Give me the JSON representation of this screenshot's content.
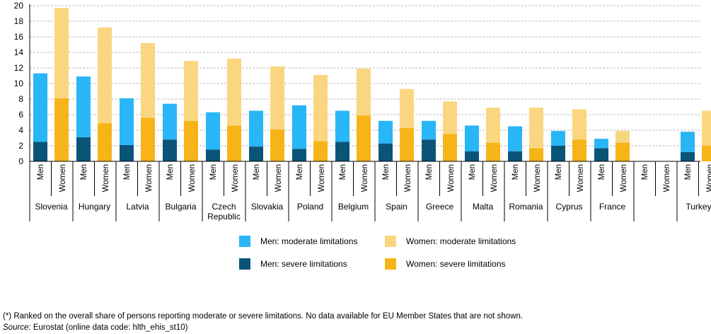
{
  "chart_data": {
    "type": "bar",
    "stacked": true,
    "ylim": [
      0,
      20
    ],
    "yticks": [
      "0",
      "2",
      "4",
      "6",
      "8",
      "10",
      "12",
      "14",
      "16",
      "18",
      "20"
    ],
    "sublabels": [
      "Men",
      "Women"
    ],
    "groups": [
      {
        "name": "Slovenia",
        "men_severe": 2.5,
        "men_moderate": 8.8,
        "women_severe": 8.1,
        "women_moderate": 11.6
      },
      {
        "name": "Hungary",
        "men_severe": 3.1,
        "men_moderate": 7.8,
        "women_severe": 4.9,
        "women_moderate": 12.3
      },
      {
        "name": "Latvia",
        "men_severe": 2.1,
        "men_moderate": 6.0,
        "women_severe": 5.6,
        "women_moderate": 9.6
      },
      {
        "name": "Bulgaria",
        "men_severe": 2.8,
        "men_moderate": 4.6,
        "women_severe": 5.2,
        "women_moderate": 7.7
      },
      {
        "name": "Czech Republic",
        "men_severe": 1.5,
        "men_moderate": 4.8,
        "women_severe": 4.6,
        "women_moderate": 8.6
      },
      {
        "name": "Slovakia",
        "men_severe": 1.9,
        "men_moderate": 4.6,
        "women_severe": 4.1,
        "women_moderate": 8.1
      },
      {
        "name": "Poland",
        "men_severe": 1.6,
        "men_moderate": 5.6,
        "women_severe": 2.6,
        "women_moderate": 8.5
      },
      {
        "name": "Belgium",
        "men_severe": 2.5,
        "men_moderate": 4.0,
        "women_severe": 5.9,
        "women_moderate": 6.0
      },
      {
        "name": "Spain",
        "men_severe": 2.3,
        "men_moderate": 2.9,
        "women_severe": 4.3,
        "women_moderate": 5.0
      },
      {
        "name": "Greece",
        "men_severe": 2.8,
        "men_moderate": 2.4,
        "women_severe": 3.5,
        "women_moderate": 4.2
      },
      {
        "name": "Malta",
        "men_severe": 1.3,
        "men_moderate": 3.3,
        "women_severe": 2.4,
        "women_moderate": 4.5
      },
      {
        "name": "Romania",
        "men_severe": 1.3,
        "men_moderate": 3.2,
        "women_severe": 1.7,
        "women_moderate": 5.2
      },
      {
        "name": "Cyprus",
        "men_severe": 2.0,
        "men_moderate": 1.9,
        "women_severe": 2.8,
        "women_moderate": 3.9
      },
      {
        "name": "France",
        "men_severe": 1.7,
        "men_moderate": 1.2,
        "women_severe": 2.4,
        "women_moderate": 1.5
      },
      {
        "name": "",
        "empty": true
      },
      {
        "name": "Turkey",
        "men_severe": 1.2,
        "men_moderate": 2.6,
        "women_severe": 2.0,
        "women_moderate": 4.5
      }
    ],
    "legend": {
      "men_moderate": "Men: moderate limitations",
      "women_moderate": "Women: moderate limitations",
      "men_severe": "Men: severe limitations",
      "women_severe": "Women: severe limitations"
    },
    "colors": {
      "men_moderate": "#29B6F6",
      "men_severe": "#0A5577",
      "women_moderate": "#FAD680",
      "women_severe": "#F7B418",
      "grid": "#B9B9B9"
    }
  },
  "footnote": "(*) Ranked on the overall share of persons reporting moderate or severe limitations. No data available for EU Member States that are not shown.",
  "source": {
    "label": "Source:",
    "text": "Eurostat (online data code: hlth_ehis_st10)"
  }
}
